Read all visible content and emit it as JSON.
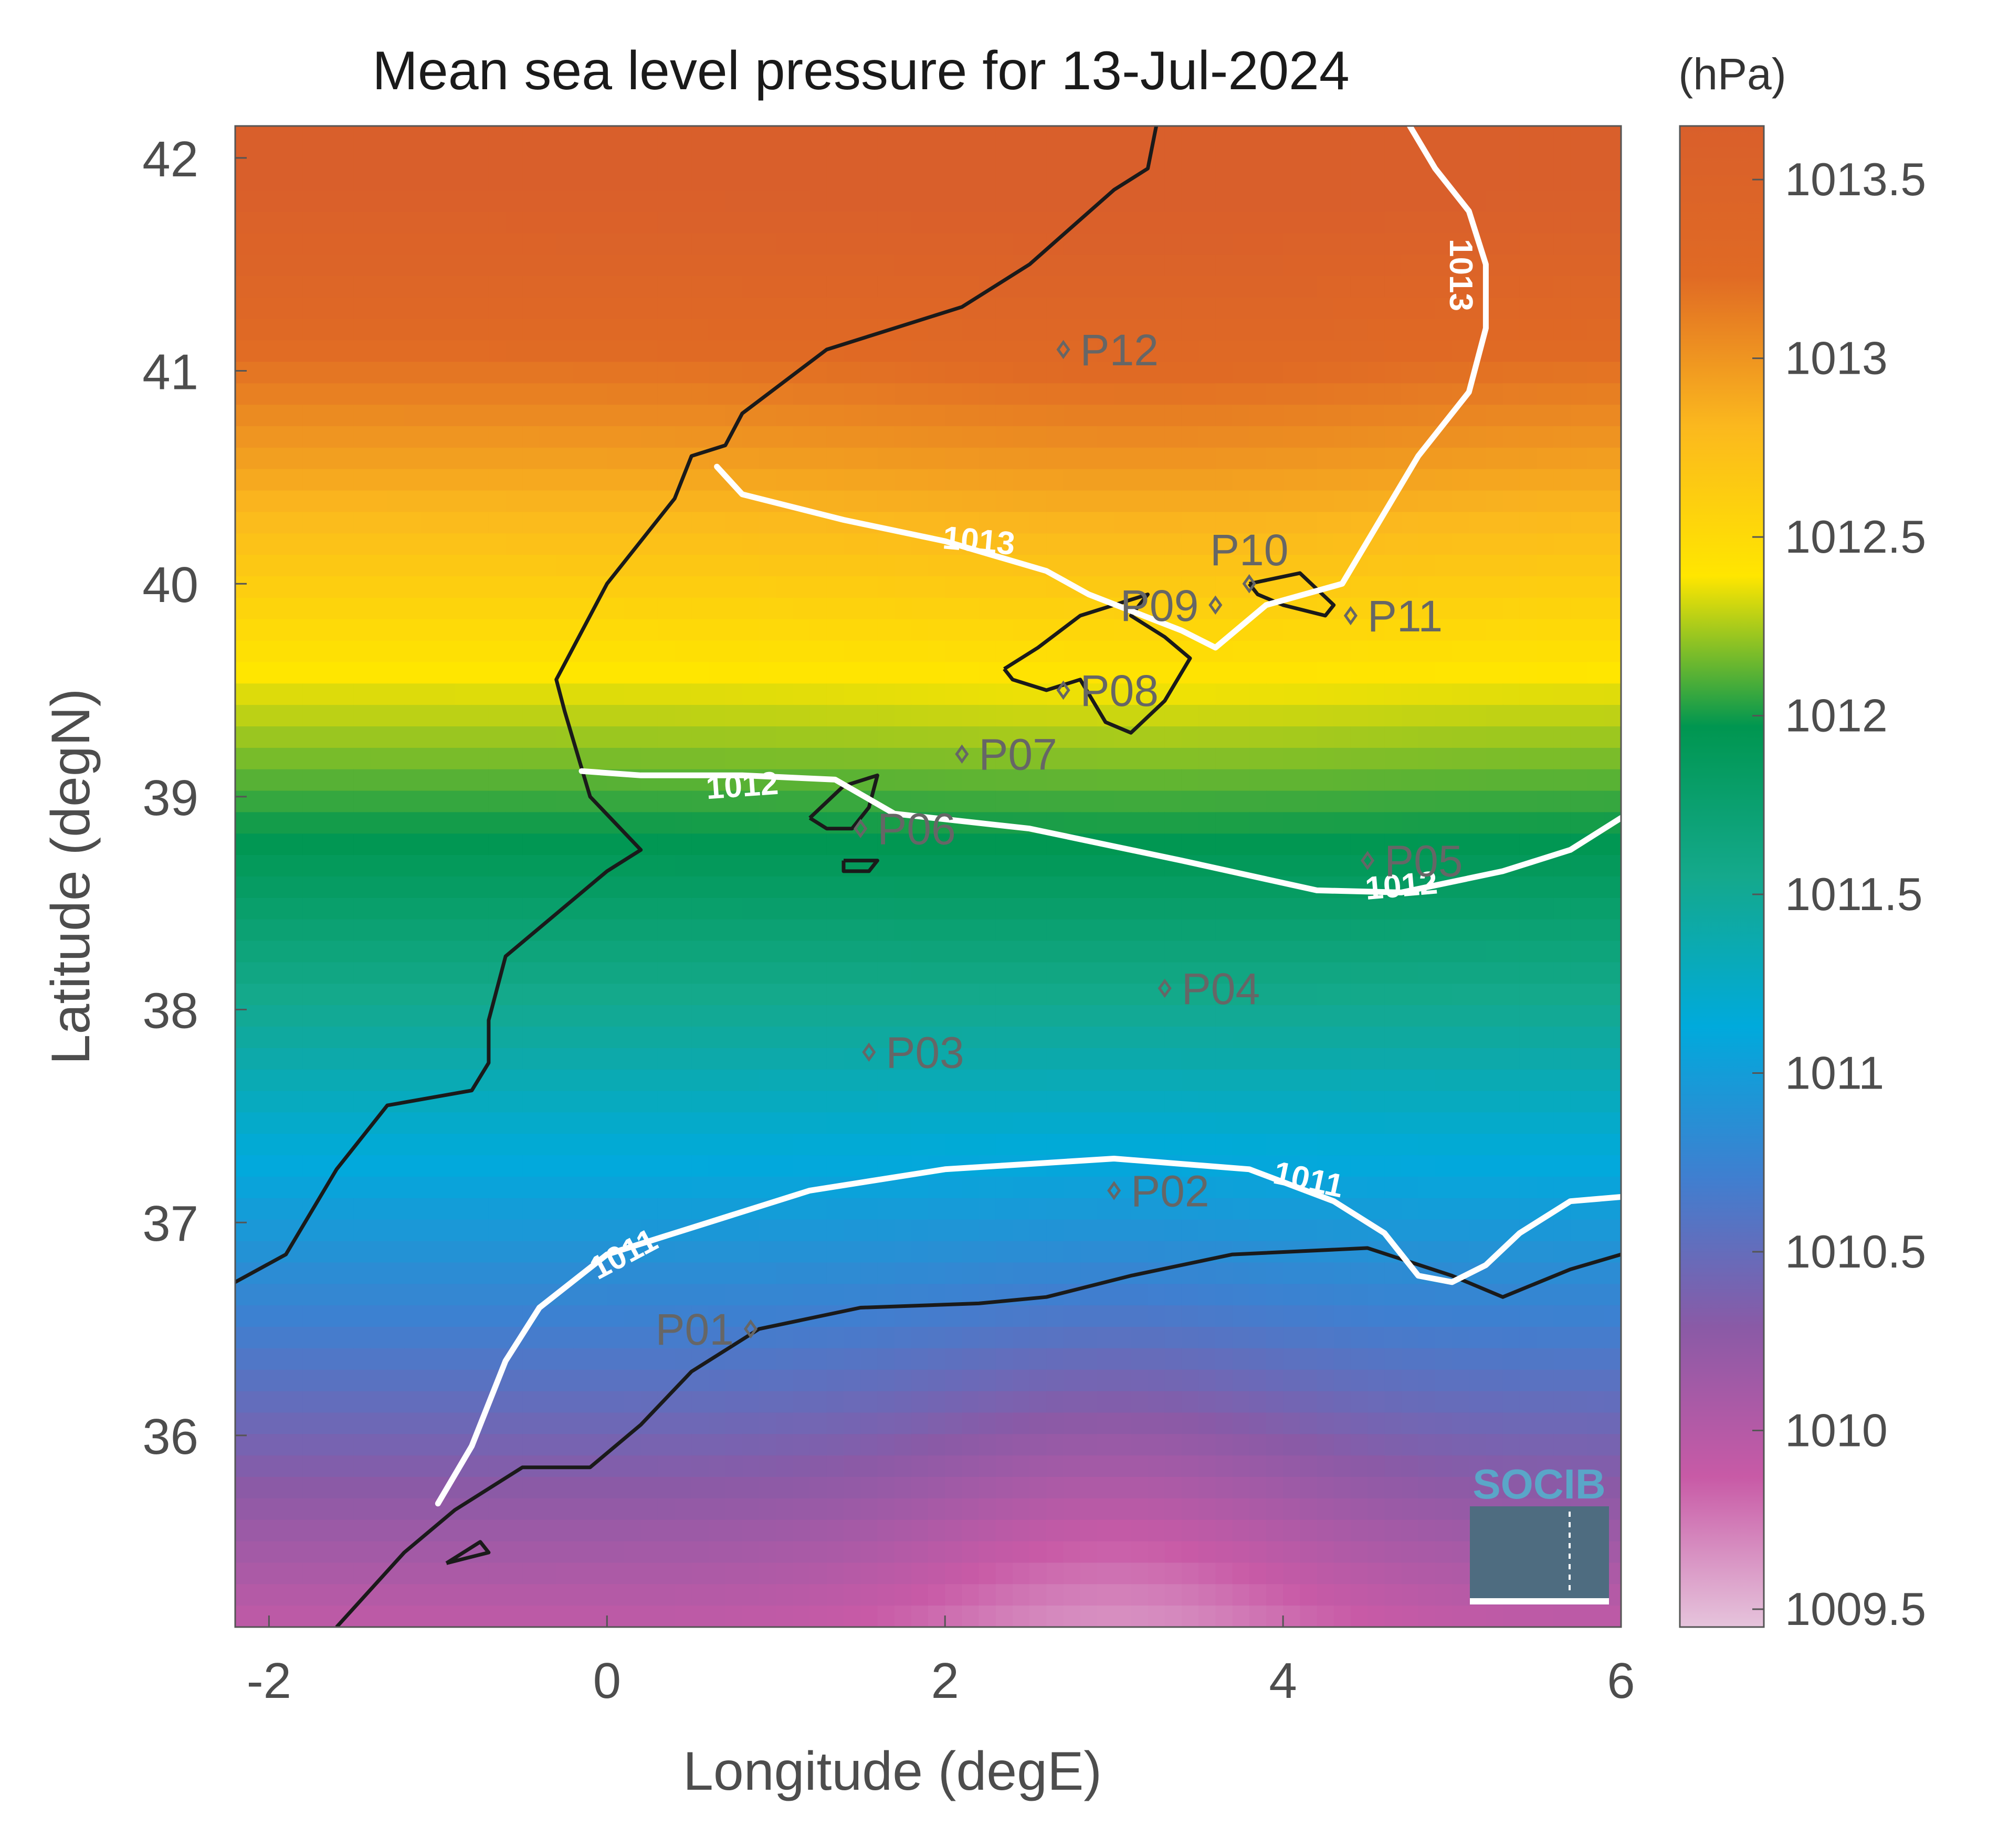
{
  "chart_data": {
    "type": "heatmap",
    "title": "Mean sea level pressure for 13-Jul-2024",
    "xlabel": "Longitude (degE)",
    "ylabel": "Latitude (degN)",
    "xlim": [
      -2.2,
      6.0
    ],
    "ylim": [
      35.1,
      42.15
    ],
    "x_ticks": [
      -2,
      0,
      2,
      4,
      6
    ],
    "y_ticks": [
      36,
      37,
      38,
      39,
      40,
      41,
      42
    ],
    "colorbar": {
      "unit": "(hPa)",
      "range": [
        1009.45,
        1013.65
      ],
      "ticks": [
        1009.5,
        1010,
        1010.5,
        1011,
        1011.5,
        1012,
        1012.5,
        1013,
        1013.5
      ],
      "tick_labels": [
        "1009.5",
        "1010",
        "1010.5",
        "1011",
        "1011.5",
        "1012",
        "1012.5",
        "1013",
        "1013.5"
      ],
      "colors": [
        "#e6c4dc",
        "#c85aa6",
        "#8a5aa6",
        "#3f7fd0",
        "#00aadc",
        "#14a98c",
        "#009650",
        "#ffe600",
        "#fbb81e",
        "#e06a24",
        "#d95f2b"
      ]
    },
    "contours": [
      {
        "level": 1013,
        "label": "1013",
        "points": [
          [
            0.65,
            40.55
          ],
          [
            0.8,
            40.42
          ],
          [
            1.4,
            40.3
          ],
          [
            2.0,
            40.2
          ],
          [
            2.6,
            40.06
          ],
          [
            2.85,
            39.95
          ],
          [
            3.4,
            39.78
          ],
          [
            3.6,
            39.7
          ],
          [
            3.9,
            39.9
          ],
          [
            4.35,
            40.0
          ],
          [
            4.8,
            40.6
          ],
          [
            5.1,
            40.9
          ],
          [
            5.2,
            41.2
          ],
          [
            5.2,
            41.5
          ],
          [
            5.1,
            41.75
          ],
          [
            4.9,
            41.95
          ],
          [
            4.75,
            42.15
          ]
        ]
      },
      {
        "level": 1012,
        "label": "1012",
        "points": [
          [
            -0.15,
            39.12
          ],
          [
            0.2,
            39.1
          ],
          [
            0.8,
            39.1
          ],
          [
            1.35,
            39.08
          ],
          [
            1.7,
            38.92
          ],
          [
            2.5,
            38.85
          ],
          [
            3.4,
            38.7
          ],
          [
            4.2,
            38.56
          ],
          [
            4.7,
            38.55
          ],
          [
            5.3,
            38.65
          ],
          [
            5.7,
            38.75
          ],
          [
            6.0,
            38.9
          ]
        ]
      },
      {
        "level": 1011,
        "label": "1011",
        "points": [
          [
            -1.0,
            35.68
          ],
          [
            -0.8,
            35.95
          ],
          [
            -0.6,
            36.35
          ],
          [
            -0.4,
            36.6
          ],
          [
            0.0,
            36.85
          ],
          [
            0.6,
            37.0
          ],
          [
            1.2,
            37.15
          ],
          [
            2.0,
            37.25
          ],
          [
            3.0,
            37.3
          ],
          [
            3.8,
            37.25
          ],
          [
            4.3,
            37.1
          ],
          [
            4.6,
            36.95
          ],
          [
            4.8,
            36.75
          ],
          [
            5.0,
            36.72
          ],
          [
            5.2,
            36.8
          ],
          [
            5.4,
            36.95
          ],
          [
            5.7,
            37.1
          ],
          [
            6.0,
            37.12
          ]
        ]
      }
    ],
    "contour_label_positions": [
      {
        "label": "1013",
        "x": 2.2,
        "y": 40.2,
        "angle": 5
      },
      {
        "label": "1013",
        "x": 5.05,
        "y": 41.45,
        "angle": 90
      },
      {
        "label": "1012",
        "x": 0.8,
        "y": 39.05,
        "angle": -4
      },
      {
        "label": "1012",
        "x": 4.7,
        "y": 38.58,
        "angle": -5
      },
      {
        "label": "1011",
        "x": 0.1,
        "y": 36.85,
        "angle": -28
      },
      {
        "label": "1011",
        "x": 4.15,
        "y": 37.2,
        "angle": 12
      }
    ],
    "stations": [
      {
        "name": "P01",
        "lon": 0.85,
        "lat": 36.5,
        "label_side": "left"
      },
      {
        "name": "P02",
        "lon": 3.0,
        "lat": 37.15,
        "label_side": "right"
      },
      {
        "name": "P03",
        "lon": 1.55,
        "lat": 37.8,
        "label_side": "right"
      },
      {
        "name": "P04",
        "lon": 3.3,
        "lat": 38.1,
        "label_side": "right"
      },
      {
        "name": "P05",
        "lon": 4.5,
        "lat": 38.7,
        "label_side": "right"
      },
      {
        "name": "P06",
        "lon": 1.5,
        "lat": 38.85,
        "label_side": "right"
      },
      {
        "name": "P07",
        "lon": 2.1,
        "lat": 39.2,
        "label_side": "right"
      },
      {
        "name": "P08",
        "lon": 2.7,
        "lat": 39.5,
        "label_side": "right"
      },
      {
        "name": "P09",
        "lon": 3.6,
        "lat": 39.9,
        "label_side": "left"
      },
      {
        "name": "P10",
        "lon": 3.8,
        "lat": 40.0,
        "label_side": "above"
      },
      {
        "name": "P11",
        "lon": 4.4,
        "lat": 39.85,
        "label_side": "right"
      },
      {
        "name": "P12",
        "lon": 2.7,
        "lat": 41.1,
        "label_side": "right"
      }
    ],
    "pressure_centers": [
      {
        "lon": 3.2,
        "lat": 41.3,
        "value": 1013.45,
        "spread": 1.9
      },
      {
        "lon": 3.0,
        "lat": 35.2,
        "value": 1009.5,
        "spread": 1.3
      }
    ],
    "grid": false,
    "legend": "colorbar-right"
  },
  "coastlines": {
    "iberia": [
      [
        -2.2,
        36.72
      ],
      [
        -1.9,
        36.85
      ],
      [
        -1.6,
        37.25
      ],
      [
        -1.3,
        37.55
      ],
      [
        -0.8,
        37.62
      ],
      [
        -0.7,
        37.75
      ],
      [
        -0.7,
        37.95
      ],
      [
        -0.6,
        38.25
      ],
      [
        -0.3,
        38.45
      ],
      [
        0.0,
        38.65
      ],
      [
        0.2,
        38.75
      ],
      [
        -0.1,
        39.0
      ],
      [
        -0.25,
        39.4
      ],
      [
        -0.3,
        39.55
      ],
      [
        0.0,
        40.0
      ],
      [
        0.4,
        40.4
      ],
      [
        0.5,
        40.6
      ],
      [
        0.7,
        40.65
      ],
      [
        0.8,
        40.8
      ],
      [
        1.3,
        41.1
      ],
      [
        2.1,
        41.3
      ],
      [
        2.5,
        41.5
      ],
      [
        3.0,
        41.85
      ],
      [
        3.2,
        41.95
      ],
      [
        3.25,
        42.15
      ]
    ],
    "africa": [
      [
        -1.6,
        35.1
      ],
      [
        -1.2,
        35.45
      ],
      [
        -0.9,
        35.65
      ],
      [
        -0.5,
        35.85
      ],
      [
        -0.1,
        35.85
      ],
      [
        0.2,
        36.05
      ],
      [
        0.5,
        36.3
      ],
      [
        0.9,
        36.5
      ],
      [
        1.5,
        36.6
      ],
      [
        2.2,
        36.62
      ],
      [
        2.6,
        36.65
      ],
      [
        3.1,
        36.75
      ],
      [
        3.7,
        36.85
      ],
      [
        4.5,
        36.88
      ],
      [
        5.0,
        36.75
      ],
      [
        5.3,
        36.65
      ],
      [
        5.7,
        36.78
      ],
      [
        6.0,
        36.85
      ]
    ],
    "mallorca": [
      [
        2.35,
        39.6
      ],
      [
        2.55,
        39.7
      ],
      [
        2.8,
        39.85
      ],
      [
        3.2,
        39.95
      ],
      [
        3.1,
        39.85
      ],
      [
        3.3,
        39.75
      ],
      [
        3.45,
        39.65
      ],
      [
        3.3,
        39.45
      ],
      [
        3.1,
        39.3
      ],
      [
        2.95,
        39.35
      ],
      [
        2.8,
        39.55
      ],
      [
        2.6,
        39.5
      ],
      [
        2.4,
        39.55
      ],
      [
        2.35,
        39.6
      ]
    ],
    "menorca": [
      [
        3.8,
        40.0
      ],
      [
        4.1,
        40.05
      ],
      [
        4.3,
        39.9
      ],
      [
        4.25,
        39.85
      ],
      [
        4.0,
        39.9
      ],
      [
        3.85,
        39.95
      ],
      [
        3.8,
        40.0
      ]
    ],
    "ibiza": [
      [
        1.2,
        38.9
      ],
      [
        1.4,
        39.05
      ],
      [
        1.6,
        39.1
      ],
      [
        1.55,
        38.95
      ],
      [
        1.45,
        38.85
      ],
      [
        1.3,
        38.85
      ],
      [
        1.2,
        38.9
      ]
    ],
    "formentera": [
      [
        1.4,
        38.7
      ],
      [
        1.6,
        38.7
      ],
      [
        1.55,
        38.65
      ],
      [
        1.4,
        38.65
      ],
      [
        1.4,
        38.7
      ]
    ],
    "alboran": [
      [
        -0.95,
        35.4
      ],
      [
        -0.7,
        35.45
      ],
      [
        -0.75,
        35.5
      ],
      [
        -0.95,
        35.4
      ]
    ]
  },
  "logo": {
    "text": "SOCIB"
  }
}
